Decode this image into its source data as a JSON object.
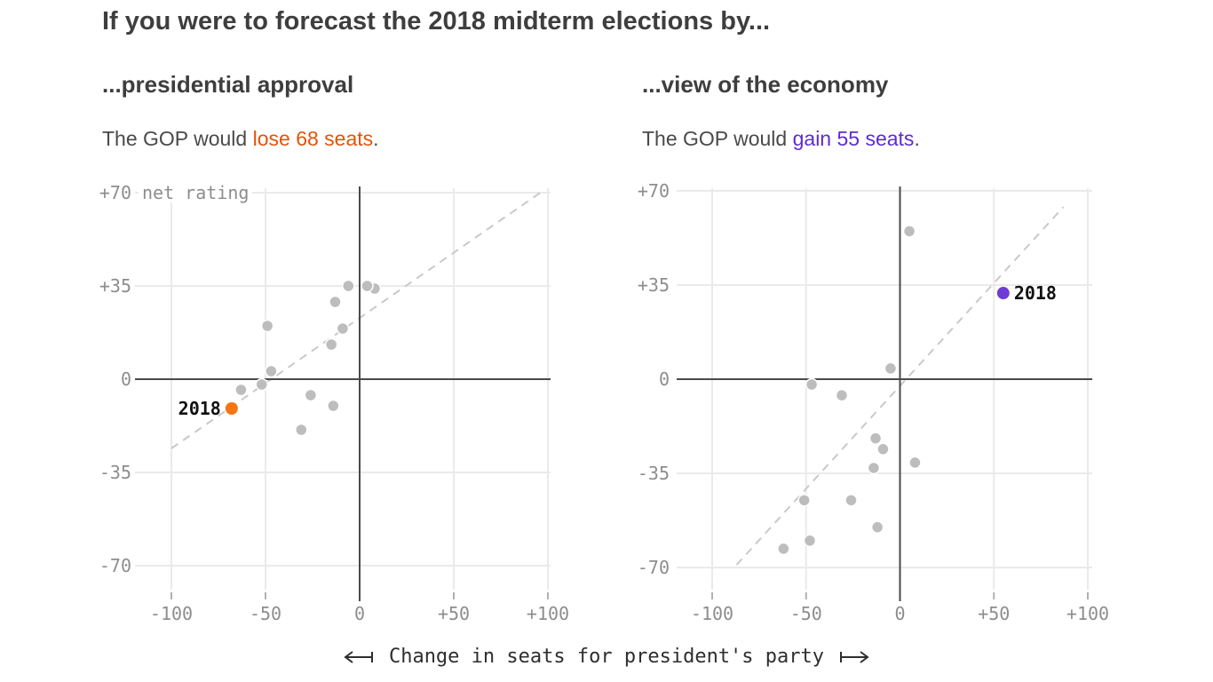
{
  "header": {
    "title": "If you were to forecast the 2018 midterm elections by..."
  },
  "panels": [
    {
      "subtitle": "...presidential approval",
      "desc": {
        "prefix": "The GOP would ",
        "highlight": "lose 68 seats",
        "suffix": "."
      },
      "highlight_color": "#e25408"
    },
    {
      "subtitle": "...view of the economy",
      "desc": {
        "prefix": "The GOP would ",
        "highlight": "gain 55 seats",
        "suffix": "."
      },
      "highlight_color": "#5e2ccf"
    }
  ],
  "caption": {
    "text": "Change in seats for president's party"
  },
  "colors": {
    "grid": "#eaeaea",
    "axis": "#4a4a4a",
    "trend": "#c9c9c9",
    "dot": "#bdbdbd",
    "tick_text": "#8d8d8d",
    "tick_mark": "#b0b0b0",
    "label_text": "#111111"
  },
  "chart_data": [
    {
      "type": "scatter",
      "title": "...presidential approval",
      "xlabel": "Change in seats for president's party",
      "ylabel": "net rating",
      "y_unit_annotation": "net rating",
      "xlim": [
        -120,
        102
      ],
      "ylim": [
        -79,
        72
      ],
      "grid": true,
      "x_ticks": {
        "values": [
          -100,
          -50,
          0,
          50,
          100
        ],
        "labels": [
          "-100",
          "-50",
          "0",
          "+50",
          "+100"
        ]
      },
      "y_ticks": {
        "values": [
          70,
          35,
          0,
          -35,
          -70
        ],
        "labels": [
          "+70",
          "+35",
          "0",
          "-35",
          "-70"
        ]
      },
      "trend_dashed": {
        "x1": -100,
        "y1": -26,
        "x2": 98,
        "y2": 71
      },
      "points": [
        [
          -6,
          35
        ],
        [
          8,
          34
        ],
        [
          4,
          35
        ],
        [
          -13,
          29
        ],
        [
          -49,
          20
        ],
        [
          -9,
          19
        ],
        [
          -15,
          13
        ],
        [
          -47,
          3
        ],
        [
          -52,
          -2
        ],
        [
          -63,
          -4
        ],
        [
          -26,
          -6
        ],
        [
          -14,
          -10
        ],
        [
          -31,
          -19
        ]
      ],
      "highlight": {
        "x": -68,
        "y": -11,
        "label": "2018",
        "label_side": "left",
        "color": "#f57413"
      }
    },
    {
      "type": "scatter",
      "title": "...view of the economy",
      "xlabel": "Change in seats for president's party",
      "ylabel": "net rating",
      "y_unit_annotation": null,
      "xlim": [
        -120,
        102
      ],
      "ylim": [
        -79,
        72
      ],
      "grid": true,
      "x_ticks": {
        "values": [
          -100,
          -50,
          0,
          50,
          100
        ],
        "labels": [
          "-100",
          "-50",
          "0",
          "+50",
          "+100"
        ]
      },
      "y_ticks": {
        "values": [
          70,
          35,
          0,
          -35,
          -70
        ],
        "labels": [
          "+70",
          "+35",
          "0",
          "-35",
          "-70"
        ]
      },
      "trend_dashed": {
        "x1": -87,
        "y1": -69,
        "x2": 87,
        "y2": 64
      },
      "points": [
        [
          5,
          55
        ],
        [
          -5,
          4
        ],
        [
          -47,
          -2
        ],
        [
          -31,
          -6
        ],
        [
          -13,
          -22
        ],
        [
          -9,
          -26
        ],
        [
          8,
          -31
        ],
        [
          -14,
          -33
        ],
        [
          -51,
          -45
        ],
        [
          -26,
          -45
        ],
        [
          -12,
          -55
        ],
        [
          -48,
          -60
        ],
        [
          -62,
          -63
        ]
      ],
      "highlight": {
        "x": 55,
        "y": 32,
        "label": "2018",
        "label_side": "right",
        "color": "#6e3cd4"
      }
    }
  ]
}
